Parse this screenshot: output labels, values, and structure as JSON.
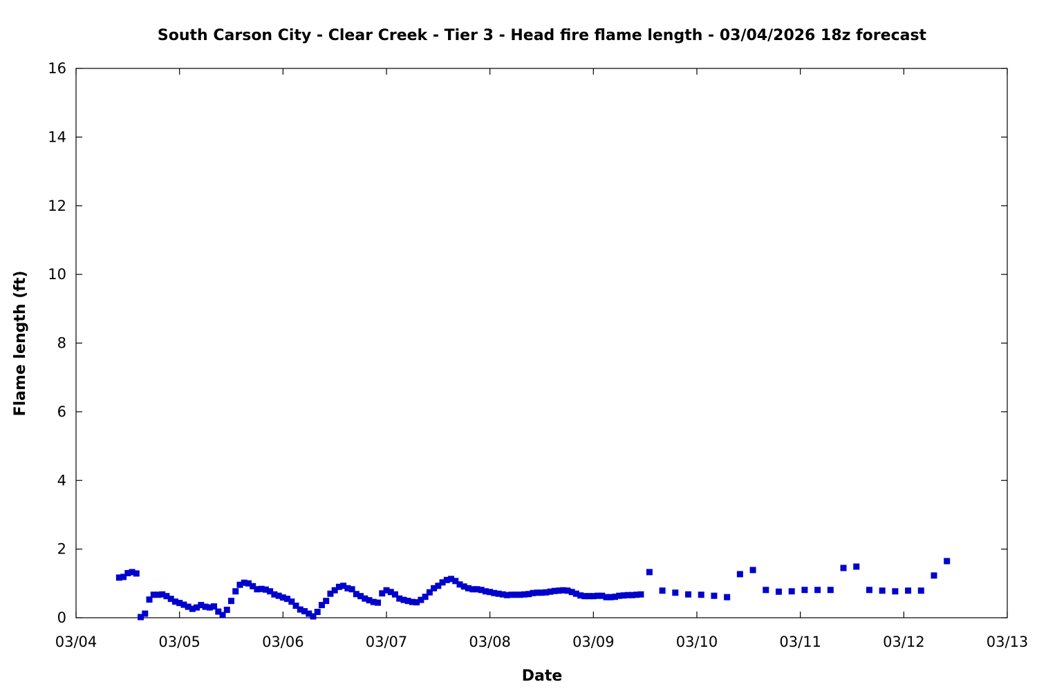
{
  "chart_data": {
    "type": "scatter",
    "title": "South Carson City - Clear Creek - Tier 3 - Head fire flame length - 03/04/2026 18z forecast",
    "xlabel": "Date",
    "ylabel": "Flame length (ft)",
    "xlim": [
      "03/04 00:00",
      "03/13 00:00"
    ],
    "ylim": [
      0,
      16
    ],
    "x_ticks": [
      "03/04",
      "03/05",
      "03/06",
      "03/07",
      "03/08",
      "03/09",
      "03/10",
      "03/11",
      "03/12",
      "03/13"
    ],
    "y_ticks": [
      0,
      2,
      4,
      6,
      8,
      10,
      12,
      14,
      16
    ],
    "grid": false,
    "marker_color": "#0000cc",
    "series": [
      {
        "points": [
          [
            "03/04 10:00",
            1.17
          ],
          [
            "03/04 11:00",
            1.19
          ],
          [
            "03/04 12:00",
            1.3
          ],
          [
            "03/04 13:00",
            1.33
          ],
          [
            "03/04 14:00",
            1.29
          ],
          [
            "03/04 15:00",
            0.02
          ],
          [
            "03/04 16:00",
            0.12
          ],
          [
            "03/04 17:00",
            0.53
          ],
          [
            "03/04 18:00",
            0.67
          ],
          [
            "03/04 19:00",
            0.67
          ],
          [
            "03/04 20:00",
            0.68
          ],
          [
            "03/04 21:00",
            0.63
          ],
          [
            "03/04 22:00",
            0.55
          ],
          [
            "03/04 23:00",
            0.47
          ],
          [
            "03/05 00:00",
            0.43
          ],
          [
            "03/05 01:00",
            0.38
          ],
          [
            "03/05 02:00",
            0.32
          ],
          [
            "03/05 03:00",
            0.26
          ],
          [
            "03/05 04:00",
            0.3
          ],
          [
            "03/05 05:00",
            0.37
          ],
          [
            "03/05 06:00",
            0.32
          ],
          [
            "03/05 07:00",
            0.3
          ],
          [
            "03/05 08:00",
            0.33
          ],
          [
            "03/05 09:00",
            0.18
          ],
          [
            "03/05 10:00",
            0.08
          ],
          [
            "03/05 11:00",
            0.23
          ],
          [
            "03/05 12:00",
            0.49
          ],
          [
            "03/05 13:00",
            0.77
          ],
          [
            "03/05 14:00",
            0.96
          ],
          [
            "03/05 15:00",
            1.02
          ],
          [
            "03/05 16:00",
            1.0
          ],
          [
            "03/05 17:00",
            0.92
          ],
          [
            "03/05 18:00",
            0.83
          ],
          [
            "03/05 19:00",
            0.84
          ],
          [
            "03/05 20:00",
            0.82
          ],
          [
            "03/05 21:00",
            0.77
          ],
          [
            "03/05 22:00",
            0.68
          ],
          [
            "03/05 23:00",
            0.64
          ],
          [
            "03/06 00:00",
            0.59
          ],
          [
            "03/06 01:00",
            0.55
          ],
          [
            "03/06 02:00",
            0.47
          ],
          [
            "03/06 03:00",
            0.35
          ],
          [
            "03/06 04:00",
            0.24
          ],
          [
            "03/06 05:00",
            0.19
          ],
          [
            "03/06 06:00",
            0.12
          ],
          [
            "03/06 07:00",
            0.04
          ],
          [
            "03/06 08:00",
            0.17
          ],
          [
            "03/06 09:00",
            0.37
          ],
          [
            "03/06 10:00",
            0.49
          ],
          [
            "03/06 11:00",
            0.7
          ],
          [
            "03/06 12:00",
            0.8
          ],
          [
            "03/06 13:00",
            0.9
          ],
          [
            "03/06 14:00",
            0.93
          ],
          [
            "03/06 15:00",
            0.86
          ],
          [
            "03/06 16:00",
            0.83
          ],
          [
            "03/06 17:00",
            0.69
          ],
          [
            "03/06 18:00",
            0.63
          ],
          [
            "03/06 19:00",
            0.56
          ],
          [
            "03/06 20:00",
            0.51
          ],
          [
            "03/06 21:00",
            0.46
          ],
          [
            "03/06 22:00",
            0.44
          ],
          [
            "03/06 23:00",
            0.71
          ],
          [
            "03/07 00:00",
            0.8
          ],
          [
            "03/07 01:00",
            0.75
          ],
          [
            "03/07 02:00",
            0.68
          ],
          [
            "03/07 03:00",
            0.56
          ],
          [
            "03/07 04:00",
            0.52
          ],
          [
            "03/07 05:00",
            0.49
          ],
          [
            "03/07 06:00",
            0.46
          ],
          [
            "03/07 07:00",
            0.45
          ],
          [
            "03/07 08:00",
            0.52
          ],
          [
            "03/07 09:00",
            0.61
          ],
          [
            "03/07 10:00",
            0.74
          ],
          [
            "03/07 11:00",
            0.86
          ],
          [
            "03/07 12:00",
            0.93
          ],
          [
            "03/07 13:00",
            1.03
          ],
          [
            "03/07 14:00",
            1.1
          ],
          [
            "03/07 15:00",
            1.13
          ],
          [
            "03/07 16:00",
            1.07
          ],
          [
            "03/07 17:00",
            0.97
          ],
          [
            "03/07 18:00",
            0.91
          ],
          [
            "03/07 19:00",
            0.86
          ],
          [
            "03/07 20:00",
            0.83
          ],
          [
            "03/07 21:00",
            0.83
          ],
          [
            "03/07 22:00",
            0.81
          ],
          [
            "03/07 23:00",
            0.77
          ],
          [
            "03/08 00:00",
            0.75
          ],
          [
            "03/08 01:00",
            0.72
          ],
          [
            "03/08 02:00",
            0.7
          ],
          [
            "03/08 03:00",
            0.68
          ],
          [
            "03/08 04:00",
            0.66
          ],
          [
            "03/08 05:00",
            0.67
          ],
          [
            "03/08 06:00",
            0.67
          ],
          [
            "03/08 07:00",
            0.67
          ],
          [
            "03/08 08:00",
            0.68
          ],
          [
            "03/08 09:00",
            0.69
          ],
          [
            "03/08 10:00",
            0.72
          ],
          [
            "03/08 11:00",
            0.73
          ],
          [
            "03/08 12:00",
            0.73
          ],
          [
            "03/08 13:00",
            0.74
          ],
          [
            "03/08 14:00",
            0.76
          ],
          [
            "03/08 15:00",
            0.78
          ],
          [
            "03/08 16:00",
            0.79
          ],
          [
            "03/08 17:00",
            0.8
          ],
          [
            "03/08 18:00",
            0.79
          ],
          [
            "03/08 19:00",
            0.75
          ],
          [
            "03/08 20:00",
            0.7
          ],
          [
            "03/08 21:00",
            0.65
          ],
          [
            "03/08 22:00",
            0.63
          ],
          [
            "03/08 23:00",
            0.63
          ],
          [
            "03/09 00:00",
            0.63
          ],
          [
            "03/09 01:00",
            0.64
          ],
          [
            "03/09 02:00",
            0.64
          ],
          [
            "03/09 03:00",
            0.6
          ],
          [
            "03/09 04:00",
            0.6
          ],
          [
            "03/09 05:00",
            0.61
          ],
          [
            "03/09 06:00",
            0.64
          ],
          [
            "03/09 07:00",
            0.65
          ],
          [
            "03/09 08:00",
            0.66
          ],
          [
            "03/09 09:00",
            0.66
          ],
          [
            "03/09 10:00",
            0.67
          ],
          [
            "03/09 11:00",
            0.68
          ],
          [
            "03/09 13:00",
            1.33
          ],
          [
            "03/09 16:00",
            0.79
          ],
          [
            "03/09 19:00",
            0.73
          ],
          [
            "03/09 22:00",
            0.68
          ],
          [
            "03/10 01:00",
            0.67
          ],
          [
            "03/10 04:00",
            0.64
          ],
          [
            "03/10 07:00",
            0.6
          ],
          [
            "03/10 10:00",
            1.27
          ],
          [
            "03/10 13:00",
            1.39
          ],
          [
            "03/10 16:00",
            0.81
          ],
          [
            "03/10 19:00",
            0.76
          ],
          [
            "03/10 22:00",
            0.77
          ],
          [
            "03/11 01:00",
            0.81
          ],
          [
            "03/11 04:00",
            0.81
          ],
          [
            "03/11 07:00",
            0.81
          ],
          [
            "03/11 10:00",
            1.45
          ],
          [
            "03/11 13:00",
            1.49
          ],
          [
            "03/11 16:00",
            0.81
          ],
          [
            "03/11 19:00",
            0.79
          ],
          [
            "03/11 22:00",
            0.77
          ],
          [
            "03/12 01:00",
            0.79
          ],
          [
            "03/12 04:00",
            0.79
          ],
          [
            "03/12 07:00",
            1.23
          ],
          [
            "03/12 10:00",
            1.65
          ]
        ]
      }
    ]
  }
}
